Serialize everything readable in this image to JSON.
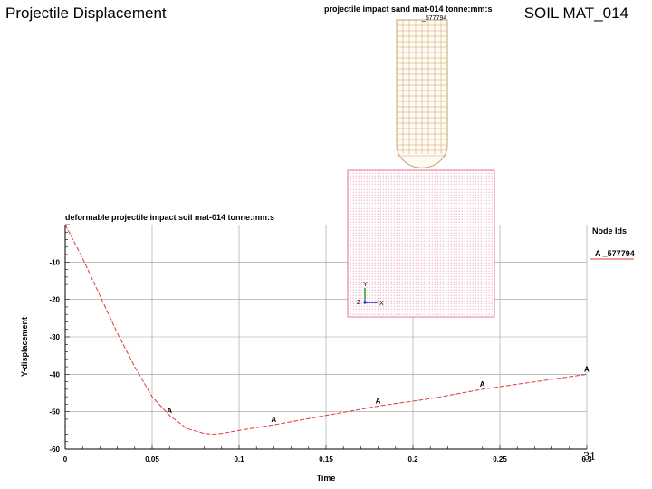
{
  "slide": {
    "title": "Projectile Displacement",
    "subtitle": "SOIL MAT_014",
    "page_number": "31"
  },
  "sim_view": {
    "title": "projectile impact sand mat-014 tonne:mm:s",
    "node_label": "_577794",
    "triad_labels": {
      "y": "Y",
      "z": "Z",
      "x": "X"
    },
    "colors": {
      "projectile": "#c8a26a",
      "soil": "#e05590"
    }
  },
  "chart_data": {
    "type": "line",
    "title": "deformable projectile impact soil mat-014 tonne:mm:s",
    "xlabel": "Time",
    "ylabel": "Y-displacement",
    "xlim": [
      0,
      0.3
    ],
    "ylim": [
      -60,
      0
    ],
    "xticks": [
      0,
      0.05,
      0.1,
      0.15,
      0.2,
      0.25,
      0.3
    ],
    "xtick_labels": [
      "0",
      "0.05",
      "0.1",
      "0.15",
      "0.2",
      "0.25",
      "0.3"
    ],
    "yticks": [
      -10,
      -20,
      -30,
      -40,
      -50,
      -60
    ],
    "ytick_labels": [
      "-10",
      "-20",
      "-30",
      "-40",
      "-50",
      "-60"
    ],
    "grid": true,
    "legend_title": "Node Ids",
    "legend_position": "right",
    "series": [
      {
        "name": "A _577794",
        "marker_label": "A",
        "color": "#e03a3a",
        "x": [
          0,
          0.01,
          0.02,
          0.03,
          0.04,
          0.05,
          0.06,
          0.07,
          0.08,
          0.085,
          0.09,
          0.1,
          0.12,
          0.15,
          0.18,
          0.21,
          0.24,
          0.27,
          0.3
        ],
        "y": [
          0,
          -9,
          -19,
          -29,
          -38,
          -46,
          -51,
          -54.5,
          -55.8,
          -56,
          -55.8,
          -55,
          -53.5,
          -51,
          -48.5,
          -46.5,
          -44,
          -42,
          -40
        ],
        "markers_x": [
          0.06,
          0.12,
          0.18,
          0.24,
          0.3
        ],
        "markers_y": [
          -51,
          -53.5,
          -48.5,
          -44,
          -40
        ]
      }
    ]
  }
}
